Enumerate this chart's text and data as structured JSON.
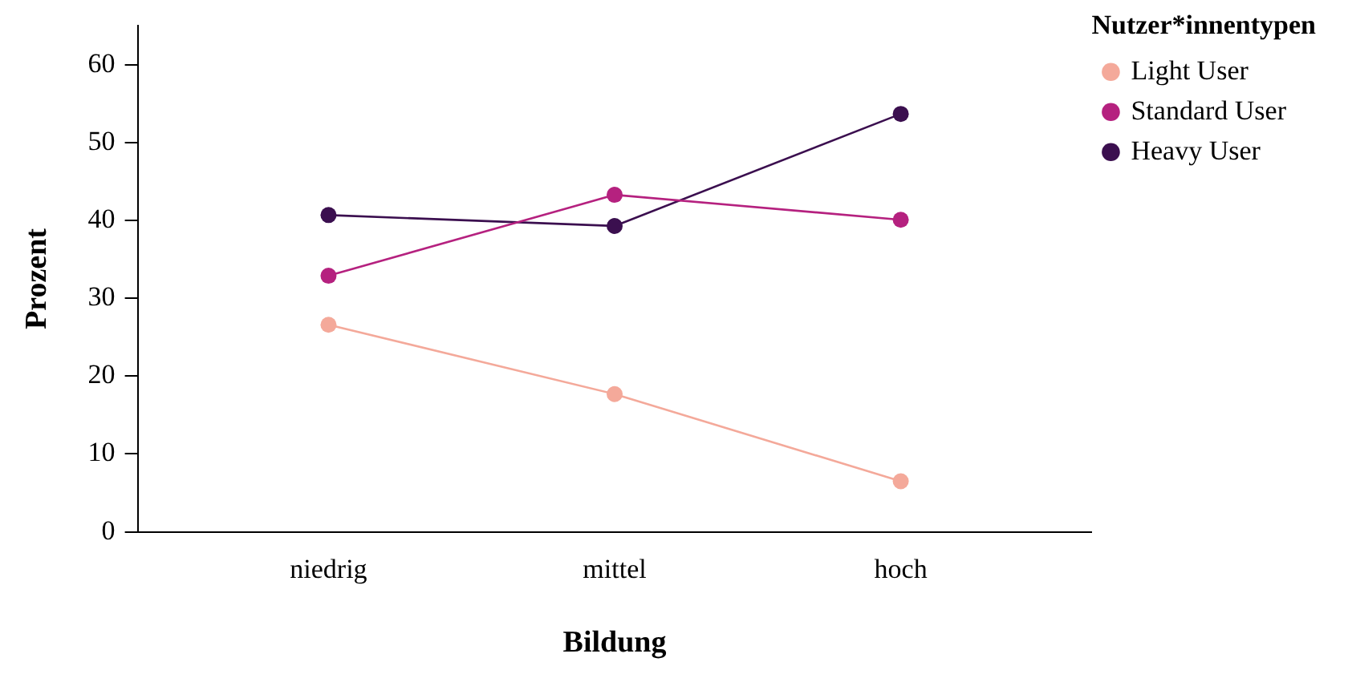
{
  "chart_data": {
    "type": "line",
    "xlabel": "Bildung",
    "ylabel": "Prozent",
    "legend_title": "Nutzer*innentypen",
    "legend": "top right",
    "marker": "circle",
    "grid": false,
    "categories": [
      "niedrig",
      "mittel",
      "hoch"
    ],
    "ylim": [
      0,
      65
    ],
    "yticks": [
      0,
      10,
      20,
      30,
      40,
      50,
      60
    ],
    "series": [
      {
        "name": "Light User",
        "color": "#f4a99a",
        "values": [
          26.6,
          17.7,
          6.5
        ]
      },
      {
        "name": "Standard User",
        "color": "#b5217f",
        "values": [
          32.9,
          43.3,
          40.1
        ]
      },
      {
        "name": "Heavy User",
        "color": "#3b0f4f",
        "values": [
          40.7,
          39.3,
          53.7
        ]
      }
    ]
  }
}
